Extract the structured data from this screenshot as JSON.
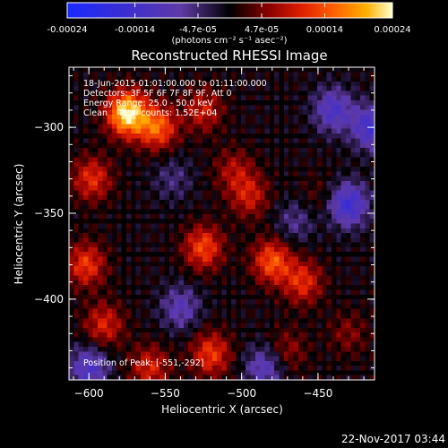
{
  "chart_data": {
    "type": "heatmap",
    "title": "Reconstructed RHESSI Image",
    "xlabel": "Heliocentric X (arcsec)",
    "ylabel": "Heliocentric Y (arcsec)",
    "xlim": [
      -613,
      -413
    ],
    "ylim": [
      -447,
      -265
    ],
    "x_ticks": [
      -600,
      -550,
      -500,
      -450
    ],
    "y_ticks": [
      -300,
      -350,
      -400
    ],
    "colorbar": {
      "ticks": [
        "-0.00024",
        "-0.00014",
        "-4.7e-05",
        "4.7e-05",
        "0.00014",
        "0.00024"
      ],
      "tick_values": [
        -0.00024,
        -0.00014,
        -4.7e-05,
        4.7e-05,
        0.00014,
        0.00024
      ],
      "range": [
        -0.00024,
        0.00024
      ],
      "unit_label": "(photons cm⁻² s⁻¹ asec⁻²)"
    },
    "annotations": [
      "18-Jun-2015 01:01:00.000 to 01:11:00.000",
      "Detectors: 3F 5F 6F 7F 8F 9F, Att 0",
      "Energy Range: 25.0 - 50.0 keV",
      "Clean    Total counts: 1.52E+04"
    ],
    "peak_label": "Position of Peak: [-551,-292]",
    "peak": {
      "x": -551,
      "y": -292
    },
    "sources": [
      {
        "x": -575,
        "y": -292,
        "value": 0.00024
      },
      {
        "x": -555,
        "y": -300,
        "value": 0.00015
      },
      {
        "x": -598,
        "y": -330,
        "value": 0.00011
      },
      {
        "x": -602,
        "y": -380,
        "value": 0.00012
      },
      {
        "x": -590,
        "y": -415,
        "value": 0.0001
      },
      {
        "x": -560,
        "y": -440,
        "value": 0.0001
      },
      {
        "x": -520,
        "y": -432,
        "value": 0.00012
      },
      {
        "x": -525,
        "y": -370,
        "value": 0.00013
      },
      {
        "x": -480,
        "y": -378,
        "value": 0.00014
      },
      {
        "x": -460,
        "y": -390,
        "value": 0.00011
      },
      {
        "x": -525,
        "y": -290,
        "value": 9e-05
      },
      {
        "x": -505,
        "y": -325,
        "value": 7e-05
      },
      {
        "x": -495,
        "y": -340,
        "value": 9e-05
      },
      {
        "x": -470,
        "y": -430,
        "value": 6e-05
      },
      {
        "x": -430,
        "y": -420,
        "value": 5e-05
      },
      {
        "x": -450,
        "y": -340,
        "value": 3e-05
      },
      {
        "x": -440,
        "y": -290,
        "value": -0.00012
      },
      {
        "x": -430,
        "y": -345,
        "value": -0.00015
      },
      {
        "x": -415,
        "y": -300,
        "value": -0.00014
      },
      {
        "x": -540,
        "y": -405,
        "value": -9e-05
      },
      {
        "x": -600,
        "y": -440,
        "value": -0.00012
      },
      {
        "x": -485,
        "y": -440,
        "value": -0.0001
      },
      {
        "x": -545,
        "y": -330,
        "value": -5e-05
      },
      {
        "x": -465,
        "y": -355,
        "value": -6e-05
      }
    ]
  },
  "footer": {
    "timestamp": "22-Nov-2017 03:44"
  }
}
